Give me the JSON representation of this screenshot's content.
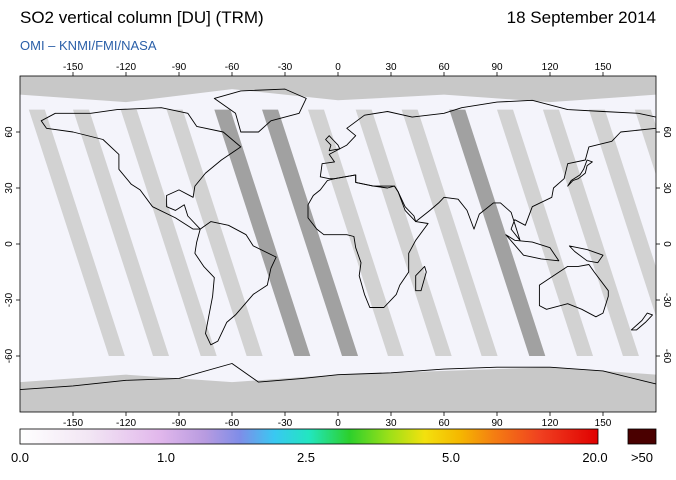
{
  "header": {
    "title": "SO2 vertical column [DU] (TRM)",
    "date": "18 September 2014",
    "credit": "OMI  –  KNMI/FMI/NASA"
  },
  "map": {
    "projection": "equirectangular",
    "lon_range": [
      -180,
      180
    ],
    "lat_range": [
      -90,
      90
    ],
    "lon_ticks": [
      -150,
      -120,
      -90,
      -60,
      -30,
      0,
      30,
      60,
      90,
      120,
      150
    ],
    "lat_ticks": [
      60,
      30,
      0,
      -30,
      -60
    ],
    "colors": {
      "ocean": "#f4f4fb",
      "no_data": "#c8c8c8",
      "orbit_gap": "#d0d0d0",
      "over_land_gap": "#9c9c9c",
      "coastline": "#000000"
    }
  },
  "colorbar": {
    "labels": [
      "0.0",
      "1.0",
      "2.5",
      "5.0",
      "20.0"
    ],
    "overflow_label": ">50",
    "overflow_color": "#4a0000",
    "stops": [
      {
        "pos": 0.0,
        "color": "#ffffff"
      },
      {
        "pos": 0.12,
        "color": "#f2e6f4"
      },
      {
        "pos": 0.24,
        "color": "#e2b8ec"
      },
      {
        "pos": 0.32,
        "color": "#b89be0"
      },
      {
        "pos": 0.38,
        "color": "#7f8de8"
      },
      {
        "pos": 0.44,
        "color": "#39c8f2"
      },
      {
        "pos": 0.5,
        "color": "#22e6c0"
      },
      {
        "pos": 0.57,
        "color": "#2cd02c"
      },
      {
        "pos": 0.64,
        "color": "#9ee018"
      },
      {
        "pos": 0.7,
        "color": "#f3e10e"
      },
      {
        "pos": 0.76,
        "color": "#f5b800"
      },
      {
        "pos": 0.82,
        "color": "#f47e12"
      },
      {
        "pos": 0.9,
        "color": "#f04020"
      },
      {
        "pos": 1.0,
        "color": "#e00000"
      }
    ]
  }
}
